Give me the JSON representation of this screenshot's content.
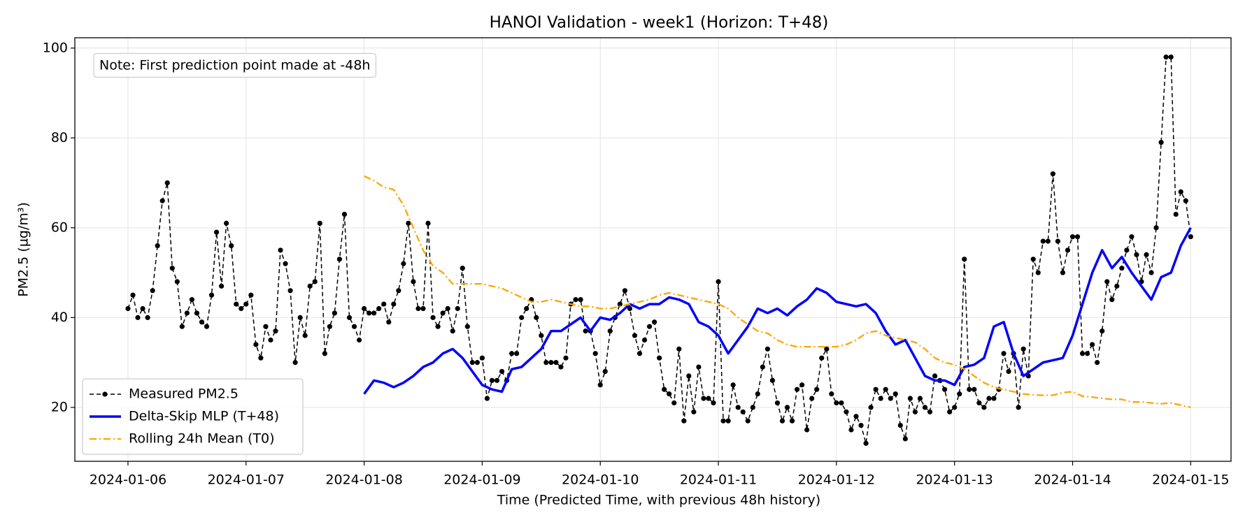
{
  "chart_data": {
    "type": "line",
    "title": "HANOI Validation - week1 (Horizon: T+48)",
    "xlabel": "Time (Predicted Time, with previous 48h history)",
    "ylabel": "PM2.5 (µg/m³)",
    "annotation": "Note: First prediction point made at -48h",
    "xlim": [
      -10.8,
      224.2
    ],
    "xticks": [
      {
        "value": 0,
        "label": "2024-01-06"
      },
      {
        "value": 24,
        "label": "2024-01-07"
      },
      {
        "value": 48,
        "label": "2024-01-08"
      },
      {
        "value": 72,
        "label": "2024-01-09"
      },
      {
        "value": 96,
        "label": "2024-01-10"
      },
      {
        "value": 120,
        "label": "2024-01-11"
      },
      {
        "value": 144,
        "label": "2024-01-12"
      },
      {
        "value": 168,
        "label": "2024-01-13"
      },
      {
        "value": 192,
        "label": "2024-01-14"
      },
      {
        "value": 216,
        "label": "2024-01-15"
      }
    ],
    "ylim": [
      8,
      102.3
    ],
    "yticks": [
      20,
      40,
      60,
      80,
      100
    ],
    "grid": true,
    "legend": "lower left",
    "series": [
      {
        "name": "Measured PM2.5",
        "color": "#000000",
        "style": "dashed",
        "marker": true,
        "x": [
          0,
          1,
          2,
          3,
          4,
          5,
          6,
          7,
          8,
          9,
          10,
          11,
          12,
          13,
          14,
          15,
          16,
          17,
          18,
          19,
          20,
          21,
          22,
          23,
          24,
          25,
          26,
          27,
          28,
          29,
          30,
          31,
          32,
          33,
          34,
          35,
          36,
          37,
          38,
          39,
          40,
          41,
          42,
          43,
          44,
          45,
          46,
          47,
          48,
          49,
          50,
          51,
          52,
          53,
          54,
          55,
          56,
          57,
          58,
          59,
          60,
          61,
          62,
          63,
          64,
          65,
          66,
          67,
          68,
          69,
          70,
          71,
          72,
          73,
          74,
          75,
          76,
          77,
          78,
          79,
          80,
          81,
          82,
          83,
          84,
          85,
          86,
          87,
          88,
          89,
          90,
          91,
          92,
          93,
          94,
          95,
          96,
          97,
          98,
          99,
          100,
          101,
          102,
          103,
          104,
          105,
          106,
          107,
          108,
          109,
          110,
          111,
          112,
          113,
          114,
          115,
          116,
          117,
          118,
          119,
          120,
          121,
          122,
          123,
          124,
          125,
          126,
          127,
          128,
          129,
          130,
          131,
          132,
          133,
          134,
          135,
          136,
          137,
          138,
          139,
          140,
          141,
          142,
          143,
          144,
          145,
          146,
          147,
          148,
          149,
          150,
          151,
          152,
          153,
          154,
          155,
          156,
          157,
          158,
          159,
          160,
          161,
          162,
          163,
          164,
          165,
          166,
          167,
          168,
          169,
          170,
          171,
          172,
          173,
          174,
          175,
          176,
          177,
          178,
          179,
          180,
          181,
          182,
          183,
          184,
          185,
          186,
          187,
          188,
          189,
          190,
          191,
          192,
          193,
          194,
          195,
          196,
          197,
          198,
          199,
          200,
          201,
          202,
          203,
          204,
          205,
          206,
          207,
          208,
          209,
          210,
          211,
          212,
          213,
          214,
          215,
          216
        ],
        "values": [
          42,
          45,
          40,
          42,
          40,
          46,
          56,
          66,
          70,
          51,
          48,
          38,
          41,
          44,
          41,
          39,
          38,
          45,
          59,
          47,
          61,
          56,
          43,
          42,
          43,
          45,
          34,
          31,
          38,
          35,
          37,
          55,
          52,
          46,
          30,
          40,
          36,
          47,
          48,
          61,
          32,
          38,
          41,
          53,
          63,
          40,
          38,
          35,
          42,
          41,
          41,
          42,
          43,
          39,
          43,
          46,
          52,
          61,
          48,
          42,
          42,
          61,
          40,
          38,
          41,
          42,
          37,
          42,
          51,
          38,
          30,
          30,
          31,
          22,
          26,
          26,
          28,
          26,
          32,
          32,
          40,
          42,
          44,
          40,
          36,
          30,
          30,
          30,
          29,
          31,
          43,
          44,
          44,
          37,
          37,
          32,
          25,
          28,
          37,
          40,
          43,
          46,
          42,
          36,
          32,
          35,
          38,
          39,
          31,
          24,
          23,
          21,
          33,
          17,
          27,
          19,
          29,
          22,
          22,
          21,
          48,
          17,
          17,
          25,
          20,
          19,
          17,
          20,
          23,
          29,
          33,
          26,
          21,
          17,
          20,
          17,
          24,
          25,
          15,
          22,
          24,
          31,
          33,
          23,
          21,
          21,
          19,
          15,
          18,
          16,
          12,
          20,
          24,
          22,
          24,
          22,
          23,
          16,
          13,
          22,
          19,
          22,
          20,
          19,
          27,
          26,
          24,
          19,
          20,
          23,
          53,
          24,
          24,
          21,
          20,
          22,
          22,
          24,
          32,
          28,
          32,
          20,
          33,
          27,
          53,
          50,
          57,
          57,
          72,
          57,
          50,
          55,
          58,
          58,
          32,
          32,
          34,
          30,
          37,
          48,
          44,
          47,
          51,
          55,
          58,
          54,
          48,
          54,
          50,
          60,
          79,
          98,
          98,
          63,
          68,
          66,
          58
        ]
      },
      {
        "name": "Delta-Skip MLP (T+48)",
        "color": "#0000ff",
        "style": "solid",
        "marker": false,
        "x": [
          48,
          50,
          52,
          54,
          56,
          58,
          60,
          62,
          64,
          66,
          68,
          70,
          72,
          74,
          76,
          78,
          80,
          82,
          84,
          86,
          88,
          90,
          92,
          94,
          96,
          98,
          100,
          102,
          104,
          106,
          108,
          110,
          112,
          114,
          116,
          118,
          120,
          122,
          124,
          126,
          128,
          130,
          132,
          134,
          136,
          138,
          140,
          142,
          144,
          146,
          148,
          150,
          152,
          154,
          156,
          158,
          160,
          162,
          164,
          166,
          168,
          170,
          172,
          174,
          176,
          178,
          180,
          182,
          184,
          186,
          188,
          190,
          192,
          194,
          196,
          198,
          200,
          202,
          204,
          206,
          208,
          210,
          212,
          214,
          216
        ],
        "values": [
          23,
          26,
          25.5,
          24.5,
          25.5,
          27,
          29,
          30,
          32,
          33,
          31,
          28,
          25,
          24,
          23.5,
          28.5,
          29,
          31,
          33,
          37,
          37,
          38.5,
          40,
          37,
          40,
          39.5,
          41,
          43,
          42,
          43,
          43,
          44.5,
          44,
          43,
          39,
          38,
          36,
          32,
          35,
          38,
          42,
          41,
          42,
          40.5,
          42.5,
          44,
          46.5,
          45.5,
          43.5,
          43,
          42.5,
          43,
          41,
          37,
          34,
          35,
          31,
          27,
          26,
          26,
          25,
          29,
          29.5,
          31,
          38,
          39,
          32,
          27,
          28.5,
          30,
          30.5,
          31,
          36,
          43,
          50,
          55,
          51,
          53.5,
          50,
          47,
          44,
          49,
          50,
          56,
          60
        ]
      },
      {
        "name": "Rolling 24h Mean (T0)",
        "color": "#ffa500",
        "style": "dashdot",
        "marker": false,
        "x": [
          48,
          50,
          52,
          54,
          56,
          58,
          60,
          62,
          64,
          66,
          68,
          70,
          72,
          74,
          76,
          78,
          80,
          82,
          84,
          86,
          88,
          90,
          92,
          94,
          96,
          98,
          100,
          102,
          104,
          106,
          108,
          110,
          112,
          114,
          116,
          118,
          120,
          122,
          124,
          126,
          128,
          130,
          132,
          134,
          136,
          138,
          140,
          142,
          144,
          146,
          148,
          150,
          152,
          154,
          156,
          158,
          160,
          162,
          164,
          166,
          168,
          170,
          172,
          174,
          176,
          178,
          180,
          182,
          184,
          186,
          188,
          190,
          192,
          194,
          196,
          198,
          200,
          202,
          204,
          206,
          208,
          210,
          212,
          214,
          216
        ],
        "values": [
          71.5,
          70.5,
          69,
          68.5,
          65,
          60,
          55,
          51.5,
          50,
          47.5,
          47.5,
          47.5,
          47.5,
          47,
          46.5,
          45.5,
          44.5,
          43.5,
          43.5,
          44,
          43.5,
          43,
          42.5,
          42.5,
          42,
          42,
          42.5,
          43,
          43.5,
          44,
          45,
          45.5,
          45,
          44.5,
          44,
          43.5,
          43,
          42,
          40,
          38.5,
          37,
          36.5,
          35,
          34,
          33.5,
          33.5,
          33.5,
          33.5,
          33.5,
          34,
          35,
          36.5,
          37,
          36,
          35.5,
          35,
          34.5,
          33,
          31,
          30,
          29.5,
          28.5,
          27,
          25.5,
          24.5,
          24,
          23.5,
          23,
          22.8,
          22.7,
          22.7,
          23.3,
          23.5,
          22.5,
          22.3,
          22,
          21.8,
          21.8,
          21.2,
          21.2,
          21,
          20.8,
          21,
          20.5,
          20
        ]
      }
    ]
  }
}
